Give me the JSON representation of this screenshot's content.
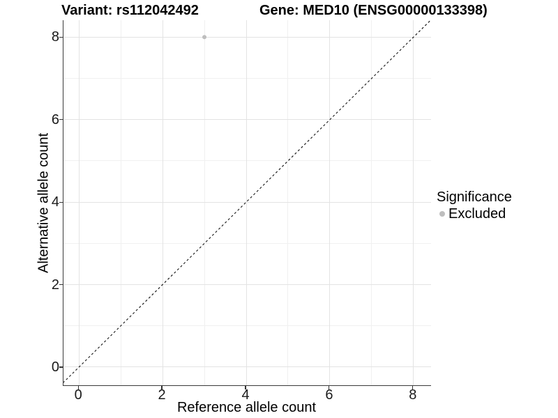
{
  "header": {
    "variant_title": "Variant: rs112042492",
    "gene_title": "Gene: MED10 (ENSG00000133398)"
  },
  "chart_data": {
    "type": "scatter",
    "title_left": "Variant: rs112042492",
    "title_right": "Gene: MED10 (ENSG00000133398)",
    "xlabel": "Reference allele count",
    "ylabel": "Alternative allele count",
    "xlim": [
      -0.37,
      8.42
    ],
    "ylim": [
      -0.44,
      8.41
    ],
    "xticks": [
      0,
      2,
      4,
      6,
      8
    ],
    "yticks": [
      0,
      2,
      4,
      6,
      8
    ],
    "minor_xticks": [
      1,
      3,
      5,
      7
    ],
    "minor_yticks": [
      1,
      3,
      5,
      7
    ],
    "grid": true,
    "identity_line": {
      "slope": 1,
      "intercept": 0,
      "style": "dashed",
      "color": "#111111"
    },
    "series": [
      {
        "name": "Excluded",
        "color": "#bebebe",
        "points": [
          {
            "x": 3,
            "y": 8
          }
        ]
      }
    ],
    "legend": {
      "title": "Significance",
      "position": "right",
      "items": [
        {
          "label": "Excluded",
          "color": "#bebebe"
        }
      ]
    },
    "colors": {
      "grid_major": "#e3e3e3",
      "grid_minor": "#f0f0f0",
      "axis_line": "#3a3a3a",
      "tick": "#333333"
    }
  }
}
